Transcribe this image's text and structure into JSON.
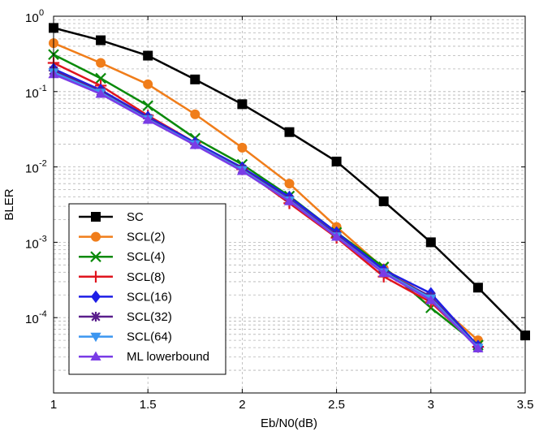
{
  "chart_data": {
    "type": "line",
    "xlabel": "Eb/N0(dB)",
    "ylabel": "BLER",
    "xlim": [
      1,
      3.5
    ],
    "ylim": [
      1e-05,
      1
    ],
    "yscale": "log",
    "grid": true,
    "legend_position": "bottom-left",
    "x_ticks": [
      "1",
      "1.5",
      "2",
      "2.5",
      "3",
      "3.5"
    ],
    "y_ticks": [
      {
        "base": "10",
        "exp": "0"
      },
      {
        "base": "10",
        "exp": "-1"
      },
      {
        "base": "10",
        "exp": "-2"
      },
      {
        "base": "10",
        "exp": "-3"
      },
      {
        "base": "10",
        "exp": "-4"
      }
    ],
    "series": [
      {
        "name": "SC",
        "color": "#000000",
        "marker": "square",
        "x": [
          1,
          1.25,
          1.5,
          1.75,
          2,
          2.25,
          2.5,
          2.75,
          3,
          3.25,
          3.5
        ],
        "y": [
          0.7,
          0.48,
          0.3,
          0.145,
          0.068,
          0.029,
          0.0118,
          0.0035,
          0.001,
          0.00025,
          5.8e-05
        ]
      },
      {
        "name": "SCL(2)",
        "color": "#f07d1a",
        "marker": "circle",
        "x": [
          1,
          1.25,
          1.5,
          1.75,
          2,
          2.25,
          2.5,
          2.75,
          3,
          3.25
        ],
        "y": [
          0.44,
          0.24,
          0.125,
          0.05,
          0.018,
          0.006,
          0.0016,
          0.00045,
          0.00018,
          5e-05
        ]
      },
      {
        "name": "SCL(4)",
        "color": "#0a8a0a",
        "marker": "x",
        "x": [
          1,
          1.25,
          1.5,
          1.75,
          2,
          2.25,
          2.5,
          2.75,
          3,
          3.25
        ],
        "y": [
          0.31,
          0.15,
          0.065,
          0.024,
          0.0108,
          0.0041,
          0.00135,
          0.00047,
          0.000135,
          4.3e-05
        ]
      },
      {
        "name": "SCL(8)",
        "color": "#e0141e",
        "marker": "plus",
        "x": [
          1,
          1.25,
          1.5,
          1.75,
          2,
          2.25,
          2.5,
          2.75,
          3,
          3.25
        ],
        "y": [
          0.24,
          0.12,
          0.048,
          0.021,
          0.0093,
          0.0033,
          0.00115,
          0.00035,
          0.00016,
          4.1e-05
        ]
      },
      {
        "name": "SCL(16)",
        "color": "#1e1ee6",
        "marker": "diamond",
        "x": [
          1,
          1.25,
          1.5,
          1.75,
          2,
          2.25,
          2.5,
          2.75,
          3,
          3.25
        ],
        "y": [
          0.2,
          0.105,
          0.046,
          0.021,
          0.0098,
          0.004,
          0.00135,
          0.00043,
          0.00021,
          4.2e-05
        ]
      },
      {
        "name": "SCL(32)",
        "color": "#5a1e8c",
        "marker": "asterisk",
        "x": [
          1,
          1.25,
          1.5,
          1.75,
          2,
          2.25,
          2.5,
          2.75,
          3,
          3.25
        ],
        "y": [
          0.19,
          0.1,
          0.044,
          0.02,
          0.0094,
          0.0037,
          0.00125,
          0.0004,
          0.00019,
          4e-05
        ]
      },
      {
        "name": "SCL(64)",
        "color": "#3c96f0",
        "marker": "triangle-down",
        "x": [
          1,
          1.25,
          1.5,
          1.75,
          2,
          2.25,
          2.5,
          2.75,
          3,
          3.25
        ],
        "y": [
          0.18,
          0.097,
          0.043,
          0.02,
          0.0091,
          0.0036,
          0.0012,
          0.0004,
          0.00018,
          4e-05
        ]
      },
      {
        "name": "ML lowerbound",
        "color": "#7a3ce6",
        "marker": "triangle-up",
        "x": [
          1,
          1.25,
          1.5,
          1.75,
          2,
          2.25,
          2.5,
          2.75,
          3,
          3.25
        ],
        "y": [
          0.17,
          0.093,
          0.042,
          0.0195,
          0.0088,
          0.0035,
          0.00118,
          0.00039,
          0.00017,
          3.9e-05
        ]
      }
    ]
  }
}
